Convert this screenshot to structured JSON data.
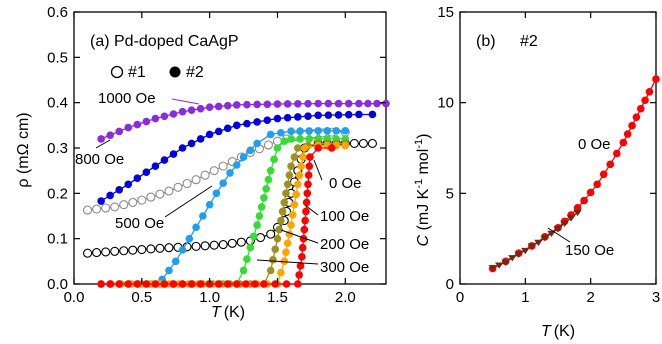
{
  "chart_data": [
    {
      "type": "scatter",
      "panel_label": "(a) Pd-doped CaAgP",
      "xlabel_italic": "T",
      "xlabel_unit": "(K)",
      "ylabel": "ρ  (mΩ cm)",
      "xlim": [
        0.0,
        2.3
      ],
      "ylim": [
        0.0,
        0.6
      ],
      "x_ticks": [
        "0.0",
        "0.5",
        "1.0",
        "1.5",
        "2.0"
      ],
      "y_ticks": [
        "0.0",
        "0.1",
        "0.2",
        "0.3",
        "0.4",
        "0.5",
        "0.6"
      ],
      "legend": {
        "open_label": "#1",
        "filled_label": "#2",
        "position": "top-left"
      },
      "series": [
        {
          "name": "#1",
          "label": "",
          "color": "#000000",
          "marker": "open",
          "x": [
            0.1,
            0.3,
            0.5,
            0.7,
            0.9,
            1.1,
            1.3,
            1.45,
            1.55,
            1.6,
            1.65,
            1.7,
            1.8,
            2.0,
            2.2
          ],
          "y": [
            0.068,
            0.072,
            0.076,
            0.08,
            0.083,
            0.087,
            0.095,
            0.11,
            0.14,
            0.2,
            0.25,
            0.3,
            0.31,
            0.31,
            0.31
          ]
        },
        {
          "name": "#1",
          "label": "800 Oe",
          "color": "#8c8c8c",
          "marker": "open",
          "x": [
            0.1,
            0.3,
            0.5,
            0.7,
            0.9,
            1.1,
            1.3,
            1.5,
            1.7,
            1.9,
            2.0
          ],
          "y": [
            0.163,
            0.17,
            0.185,
            0.205,
            0.23,
            0.26,
            0.29,
            0.315,
            0.33,
            0.335,
            0.335
          ]
        },
        {
          "name": "#2",
          "label": "1000 Oe",
          "color": "#8a2be2",
          "marker": "filled",
          "x": [
            0.2,
            0.4,
            0.6,
            0.8,
            1.0,
            1.2,
            1.5,
            1.8,
            2.1,
            2.3
          ],
          "y": [
            0.32,
            0.345,
            0.365,
            0.38,
            0.39,
            0.395,
            0.397,
            0.398,
            0.398,
            0.398
          ]
        },
        {
          "name": "#2",
          "label": "",
          "color": "#0000e0",
          "marker": "filled",
          "x": [
            0.2,
            0.4,
            0.6,
            0.8,
            1.0,
            1.2,
            1.5,
            1.8,
            2.1,
            2.2
          ],
          "y": [
            0.183,
            0.22,
            0.26,
            0.3,
            0.33,
            0.35,
            0.365,
            0.372,
            0.374,
            0.374
          ]
        },
        {
          "name": "#2",
          "label": "500 Oe",
          "color": "#1ea0f0",
          "marker": "filled",
          "x": [
            0.2,
            0.4,
            0.55,
            0.65,
            0.75,
            0.85,
            0.95,
            1.05,
            1.15,
            1.25,
            1.35,
            1.45,
            1.6,
            1.8,
            2.0
          ],
          "y": [
            0.0,
            0.0,
            0.0,
            0.01,
            0.05,
            0.1,
            0.15,
            0.2,
            0.245,
            0.28,
            0.31,
            0.33,
            0.337,
            0.338,
            0.338
          ]
        },
        {
          "name": "#2",
          "label": "300 Oe",
          "color": "#33dd33",
          "marker": "filled",
          "x": [
            0.2,
            0.5,
            0.8,
            1.1,
            1.2,
            1.25,
            1.3,
            1.35,
            1.4,
            1.45,
            1.5,
            1.55,
            1.6,
            1.8,
            2.0
          ],
          "y": [
            0.0,
            0.0,
            0.0,
            0.0,
            0.0,
            0.03,
            0.08,
            0.13,
            0.19,
            0.25,
            0.3,
            0.315,
            0.32,
            0.32,
            0.32
          ]
        },
        {
          "name": "#2",
          "label": "200 Oe",
          "color": "#a09020",
          "marker": "filled",
          "x": [
            0.2,
            0.6,
            1.0,
            1.3,
            1.4,
            1.45,
            1.5,
            1.55,
            1.6,
            1.65,
            1.8,
            2.0
          ],
          "y": [
            0.0,
            0.0,
            0.0,
            0.0,
            0.0,
            0.03,
            0.1,
            0.18,
            0.26,
            0.3,
            0.31,
            0.31
          ]
        },
        {
          "name": "#2",
          "label": "100 Oe",
          "color": "#ffa500",
          "marker": "filled",
          "x": [
            0.2,
            0.7,
            1.2,
            1.5,
            1.55,
            1.6,
            1.65,
            1.7,
            1.8,
            2.0
          ],
          "y": [
            0.0,
            0.0,
            0.0,
            0.0,
            0.05,
            0.13,
            0.22,
            0.3,
            0.305,
            0.305
          ]
        },
        {
          "name": "#2",
          "label": "0 Oe",
          "color": "#ff0000",
          "marker": "filled",
          "x": [
            0.2,
            0.8,
            1.4,
            1.65,
            1.68,
            1.71,
            1.74,
            1.8,
            1.9
          ],
          "y": [
            0.0,
            0.0,
            0.0,
            0.0,
            0.06,
            0.16,
            0.28,
            0.3,
            0.3
          ]
        }
      ],
      "annotations": [
        "1000 Oe",
        "800 Oe",
        "500 Oe",
        "0 Oe",
        "100 Oe",
        "200 Oe",
        "300 Oe"
      ]
    },
    {
      "type": "line",
      "panel_label": "(b)",
      "sample_label": "#2",
      "xlabel_italic": "T",
      "xlabel_unit": "(K)",
      "ylabel": "C (mJ K⁻¹ mol⁻¹)",
      "xlim": [
        0,
        3
      ],
      "ylim": [
        0,
        15
      ],
      "x_ticks": [
        "0",
        "1",
        "2",
        "3"
      ],
      "y_ticks": [
        "0",
        "5",
        "10",
        "15"
      ],
      "series": [
        {
          "label": "0 Oe",
          "color": "#ff0000",
          "marker": "circle",
          "x": [
            0.5,
            0.7,
            0.9,
            1.1,
            1.3,
            1.5,
            1.7,
            1.9,
            2.1,
            2.3,
            2.5,
            2.7,
            2.9,
            3.0
          ],
          "y": [
            0.85,
            1.25,
            1.7,
            2.1,
            2.6,
            3.1,
            3.8,
            4.6,
            5.5,
            6.6,
            7.8,
            9.2,
            10.6,
            11.3
          ]
        },
        {
          "label": "150 Oe",
          "color": "#6b2c14",
          "marker": "triangle-down",
          "x": [
            0.5,
            0.6,
            0.7,
            0.8,
            0.9,
            1.0,
            1.1,
            1.2,
            1.3,
            1.4,
            1.5,
            1.6,
            1.7,
            1.8
          ],
          "y": [
            0.9,
            1.05,
            1.2,
            1.45,
            1.65,
            1.85,
            2.1,
            2.3,
            2.55,
            2.8,
            3.05,
            3.35,
            3.65,
            3.95
          ]
        }
      ],
      "annotations": [
        "0 Oe",
        "150 Oe"
      ]
    }
  ]
}
